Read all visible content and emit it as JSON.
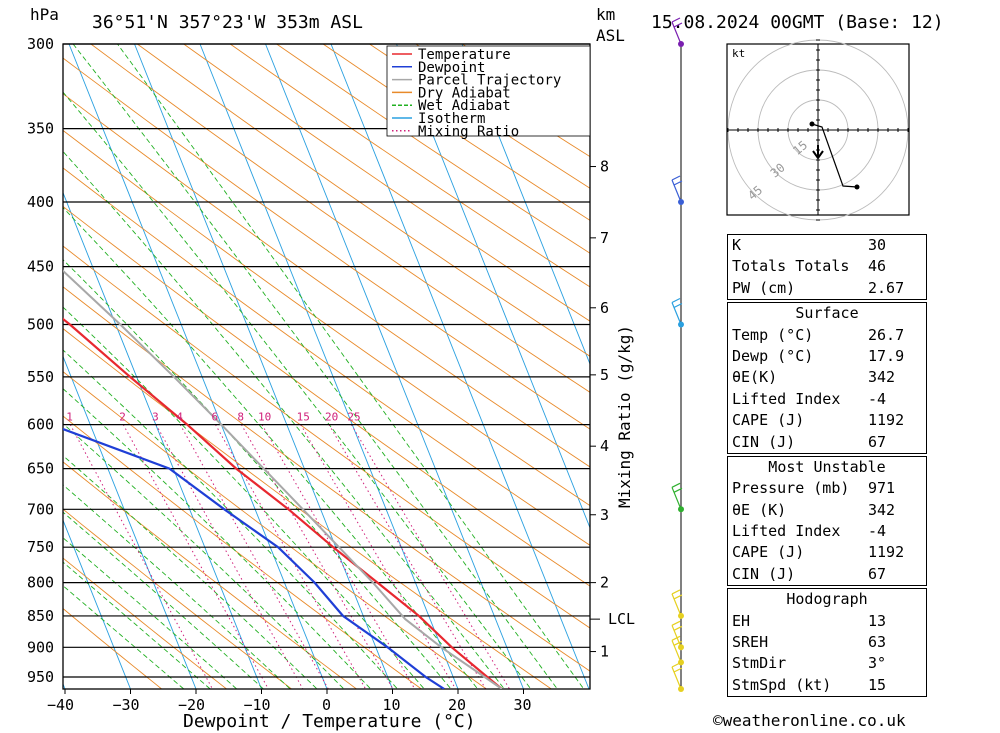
{
  "header": {
    "location": "36°51'N  357°23'W  353m  ASL",
    "date": "15.08.2024  00GMT  (Base: 12)",
    "hpa_label": "hPa",
    "km_label": "km",
    "asl_label": "ASL"
  },
  "chart_data": {
    "type": "line",
    "chart_kind": "skew-T log-P",
    "xlabel": "Dewpoint / Temperature (°C)",
    "ylabel_right": "Mixing Ratio (g/kg)",
    "x_ticks": [
      -40,
      -30,
      -20,
      -10,
      0,
      10,
      20,
      30
    ],
    "pressure_ticks": [
      300,
      350,
      400,
      450,
      500,
      550,
      600,
      650,
      700,
      750,
      800,
      850,
      900,
      950
    ],
    "km_ticks": [
      {
        "label": "1",
        "p": 907
      },
      {
        "label": "2",
        "p": 800
      },
      {
        "label": "3",
        "p": 707
      },
      {
        "label": "4",
        "p": 624
      },
      {
        "label": "5",
        "p": 548
      },
      {
        "label": "6",
        "p": 485
      },
      {
        "label": "7",
        "p": 427
      },
      {
        "label": "8",
        "p": 375
      }
    ],
    "lcl": {
      "label": "LCL",
      "p": 855
    },
    "mixing_ratio_labels": [
      "1",
      "2",
      "3",
      "4",
      "6",
      "8",
      "10",
      "15",
      "20",
      "25"
    ],
    "mixing_ratio_values": [
      1,
      2,
      3,
      4,
      6,
      8,
      10,
      15,
      20,
      25
    ],
    "legend": [
      "Temperature",
      "Dewpoint",
      "Parcel Trajectory",
      "Dry Adiabat",
      "Wet Adiabat",
      "Isotherm",
      "Mixing Ratio"
    ],
    "series": [
      {
        "name": "Temperature",
        "color": "#e8282f",
        "points": [
          [
            971,
            26.7
          ],
          [
            950,
            25.2
          ],
          [
            900,
            21.6
          ],
          [
            850,
            18.5
          ],
          [
            800,
            14.2
          ],
          [
            750,
            9.6
          ],
          [
            700,
            5.1
          ],
          [
            650,
            -0.4
          ],
          [
            600,
            -5.2
          ],
          [
            550,
            -11.0
          ],
          [
            500,
            -17.0
          ],
          [
            450,
            -24.5
          ],
          [
            400,
            -33.0
          ],
          [
            350,
            -42.5
          ],
          [
            300,
            -53.0
          ]
        ]
      },
      {
        "name": "Dewpoint",
        "color": "#1f3fd6",
        "points": [
          [
            971,
            17.9
          ],
          [
            950,
            15.8
          ],
          [
            900,
            11.8
          ],
          [
            850,
            6.9
          ],
          [
            800,
            4.6
          ],
          [
            750,
            1.2
          ],
          [
            700,
            -4.7
          ],
          [
            650,
            -10.6
          ],
          [
            600,
            -26.0
          ],
          [
            550,
            -41.0
          ],
          [
            500,
            -56.0
          ],
          [
            450,
            -61.0
          ],
          [
            400,
            -60.0
          ],
          [
            350,
            -68.0
          ],
          [
            300,
            -78.0
          ]
        ]
      },
      {
        "name": "Parcel Trajectory",
        "color": "#a8a8a8",
        "points": [
          [
            971,
            26.7
          ],
          [
            950,
            24.8
          ],
          [
            900,
            20.0
          ],
          [
            855,
            16.2
          ],
          [
            800,
            13.5
          ],
          [
            750,
            10.5
          ],
          [
            700,
            7.3
          ],
          [
            650,
            3.8
          ],
          [
            600,
            0.0
          ],
          [
            550,
            -4.3
          ],
          [
            500,
            -9.3
          ],
          [
            450,
            -15.2
          ],
          [
            400,
            -22.4
          ],
          [
            350,
            -31.2
          ],
          [
            300,
            -42.0
          ]
        ]
      }
    ],
    "wind_barbs": [
      {
        "p": 300,
        "color": "#7a1fb0"
      },
      {
        "p": 400,
        "color": "#3a5fd6"
      },
      {
        "p": 500,
        "color": "#2aa0e0"
      },
      {
        "p": 700,
        "color": "#2fb02f"
      },
      {
        "p": 850,
        "color": "#e6d020"
      },
      {
        "p": 900,
        "color": "#e6d020"
      },
      {
        "p": 925,
        "color": "#e6d020"
      },
      {
        "p": 971,
        "color": "#e6d020"
      }
    ],
    "hodograph": {
      "unit": "kt",
      "ring_labels": [
        "15",
        "30",
        "45"
      ]
    }
  },
  "indices": {
    "rows": [
      {
        "label": "K",
        "value": "30"
      },
      {
        "label": "Totals Totals",
        "value": "46"
      },
      {
        "label": "PW (cm)",
        "value": "2.67"
      }
    ]
  },
  "surface": {
    "title": "Surface",
    "rows": [
      {
        "label": "Temp (°C)",
        "value": "26.7"
      },
      {
        "label": "Dewp (°C)",
        "value": "17.9"
      },
      {
        "label": "θE(K)",
        "value": "342"
      },
      {
        "label": "Lifted Index",
        "value": "-4"
      },
      {
        "label": "CAPE (J)",
        "value": "1192"
      },
      {
        "label": "CIN (J)",
        "value": "67"
      }
    ]
  },
  "most_unstable": {
    "title": "Most Unstable",
    "rows": [
      {
        "label": "Pressure (mb)",
        "value": "971"
      },
      {
        "label": "θE (K)",
        "value": "342"
      },
      {
        "label": "Lifted Index",
        "value": "-4"
      },
      {
        "label": "CAPE (J)",
        "value": "1192"
      },
      {
        "label": "CIN (J)",
        "value": "67"
      }
    ]
  },
  "hodograph_box": {
    "title": "Hodograph",
    "rows": [
      {
        "label": "EH",
        "value": "13"
      },
      {
        "label": "SREH",
        "value": "63"
      },
      {
        "label": "StmDir",
        "value": "3°"
      },
      {
        "label": "StmSpd (kt)",
        "value": "15"
      }
    ]
  },
  "footer": {
    "copyright": "©weatheronline.co.uk"
  }
}
